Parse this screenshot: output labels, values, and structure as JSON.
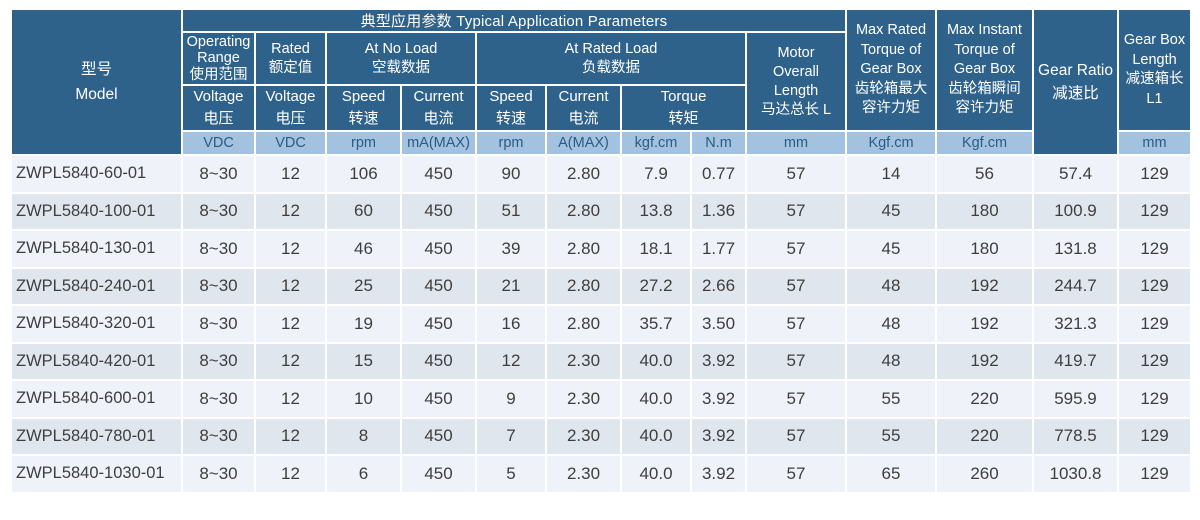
{
  "colors": {
    "header_bg": "#2F628A",
    "header_text": "#FFFFFF",
    "units_bg": "#A3C2DF",
    "units_text": "#2A5B84",
    "row_light": "#EFF2F8",
    "row_alt": "#E0E6EE",
    "data_text": "#3E3E3E",
    "grid": "#FFFFFF"
  },
  "header": {
    "title_band": "典型应用参数  Typical Application Parameters",
    "model": [
      "型号",
      "Model"
    ],
    "operating_range": [
      "Operating",
      "Range",
      "使用范围"
    ],
    "rated": [
      "Rated",
      "额定值"
    ],
    "at_no_load": [
      "At No Load",
      "空载数据"
    ],
    "at_rated_load": [
      "At Rated Load",
      "负载数据"
    ],
    "motor_length": [
      "Motor",
      "Overall",
      "Length",
      "马达总长 L"
    ],
    "max_rated_torque": [
      "Max Rated",
      "Torque of",
      "Gear Box",
      "齿轮箱最大",
      "容许力矩"
    ],
    "max_instant_torque": [
      "Max Instant",
      "Torque of",
      "Gear Box",
      "齿轮箱瞬间",
      "容许力矩"
    ],
    "gear_ratio": [
      "Gear Ratio",
      "减速比"
    ],
    "gear_box_length": [
      "Gear Box",
      "Length",
      "减速箱长",
      "L1"
    ],
    "sub": {
      "voltage1": [
        "Voltage",
        "电压"
      ],
      "voltage2": [
        "Voltage",
        "电压"
      ],
      "nl_speed": [
        "Speed",
        "转速"
      ],
      "nl_current": [
        "Current",
        "电流"
      ],
      "rl_speed": [
        "Speed",
        "转速"
      ],
      "rl_current": [
        "Current",
        "电流"
      ],
      "torque": [
        "Torque",
        "转矩"
      ]
    },
    "units": [
      "VDC",
      "VDC",
      "rpm",
      "mA(MAX)",
      "rpm",
      "A(MAX)",
      "kgf.cm",
      "N.m",
      "mm",
      "Kgf.cm",
      "Kgf.cm",
      "mm"
    ]
  },
  "rows": [
    [
      "ZWPL5840-60-01",
      "8~30",
      "12",
      "106",
      "450",
      "90",
      "2.80",
      "7.9",
      "0.77",
      "57",
      "14",
      "56",
      "57.4",
      "129"
    ],
    [
      "ZWPL5840-100-01",
      "8~30",
      "12",
      "60",
      "450",
      "51",
      "2.80",
      "13.8",
      "1.36",
      "57",
      "45",
      "180",
      "100.9",
      "129"
    ],
    [
      "ZWPL5840-130-01",
      "8~30",
      "12",
      "46",
      "450",
      "39",
      "2.80",
      "18.1",
      "1.77",
      "57",
      "45",
      "180",
      "131.8",
      "129"
    ],
    [
      "ZWPL5840-240-01",
      "8~30",
      "12",
      "25",
      "450",
      "21",
      "2.80",
      "27.2",
      "2.66",
      "57",
      "48",
      "192",
      "244.7",
      "129"
    ],
    [
      "ZWPL5840-320-01",
      "8~30",
      "12",
      "19",
      "450",
      "16",
      "2.80",
      "35.7",
      "3.50",
      "57",
      "48",
      "192",
      "321.3",
      "129"
    ],
    [
      "ZWPL5840-420-01",
      "8~30",
      "12",
      "15",
      "450",
      "12",
      "2.30",
      "40.0",
      "3.92",
      "57",
      "48",
      "192",
      "419.7",
      "129"
    ],
    [
      "ZWPL5840-600-01",
      "8~30",
      "12",
      "10",
      "450",
      "9",
      "2.30",
      "40.0",
      "3.92",
      "57",
      "55",
      "220",
      "595.9",
      "129"
    ],
    [
      "ZWPL5840-780-01",
      "8~30",
      "12",
      "8",
      "450",
      "7",
      "2.30",
      "40.0",
      "3.92",
      "57",
      "55",
      "220",
      "778.5",
      "129"
    ],
    [
      "ZWPL5840-1030-01",
      "8~30",
      "12",
      "6",
      "450",
      "5",
      "2.30",
      "40.0",
      "3.92",
      "57",
      "65",
      "260",
      "1030.8",
      "129"
    ]
  ]
}
